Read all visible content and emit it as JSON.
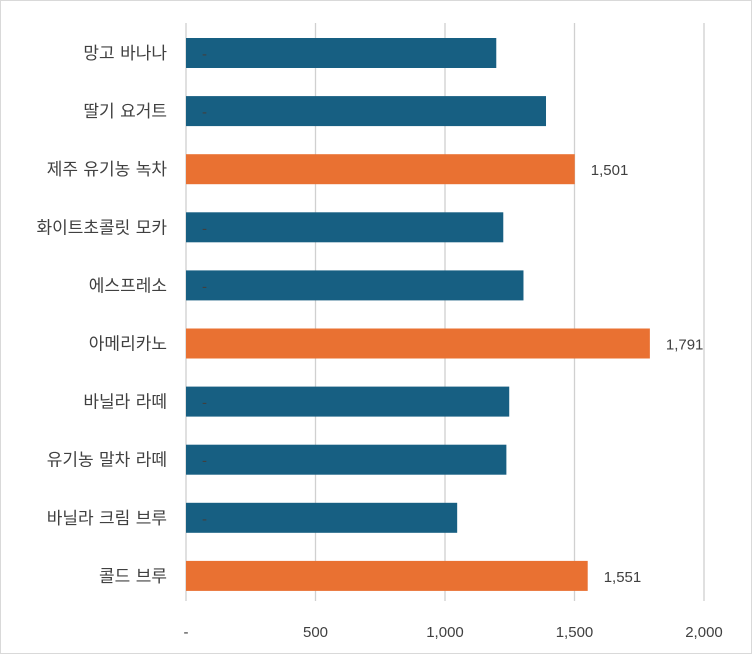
{
  "chart_data": {
    "type": "bar",
    "orientation": "horizontal",
    "categories": [
      "망고 바나나",
      "딸기 요거트",
      "제주 유기농 녹차",
      "화이트초콜릿 모카",
      "에스프레소",
      "아메리카노",
      "바닐라 라떼",
      "유기농 말차 라떼",
      "바닐라 크림 브루",
      "콜드 브루"
    ],
    "values": [
      1198,
      1390,
      1501,
      1225,
      1303,
      1791,
      1248,
      1237,
      1047,
      1551
    ],
    "highlighted": [
      false,
      false,
      true,
      false,
      false,
      true,
      false,
      false,
      false,
      true
    ],
    "data_labels": [
      "-",
      "-",
      "1,501",
      "-",
      "-",
      "1,791",
      "-",
      "-",
      "-",
      "1,551"
    ],
    "x_ticks": [
      0,
      500,
      1000,
      1500,
      2000
    ],
    "x_tick_labels": [
      "-",
      "500",
      "1,000",
      "1,500",
      "2,000"
    ],
    "xlim": [
      0,
      2000
    ],
    "grid": true,
    "legend": "none",
    "colors": {
      "default": "#175f82",
      "highlight": "#e97132"
    }
  }
}
